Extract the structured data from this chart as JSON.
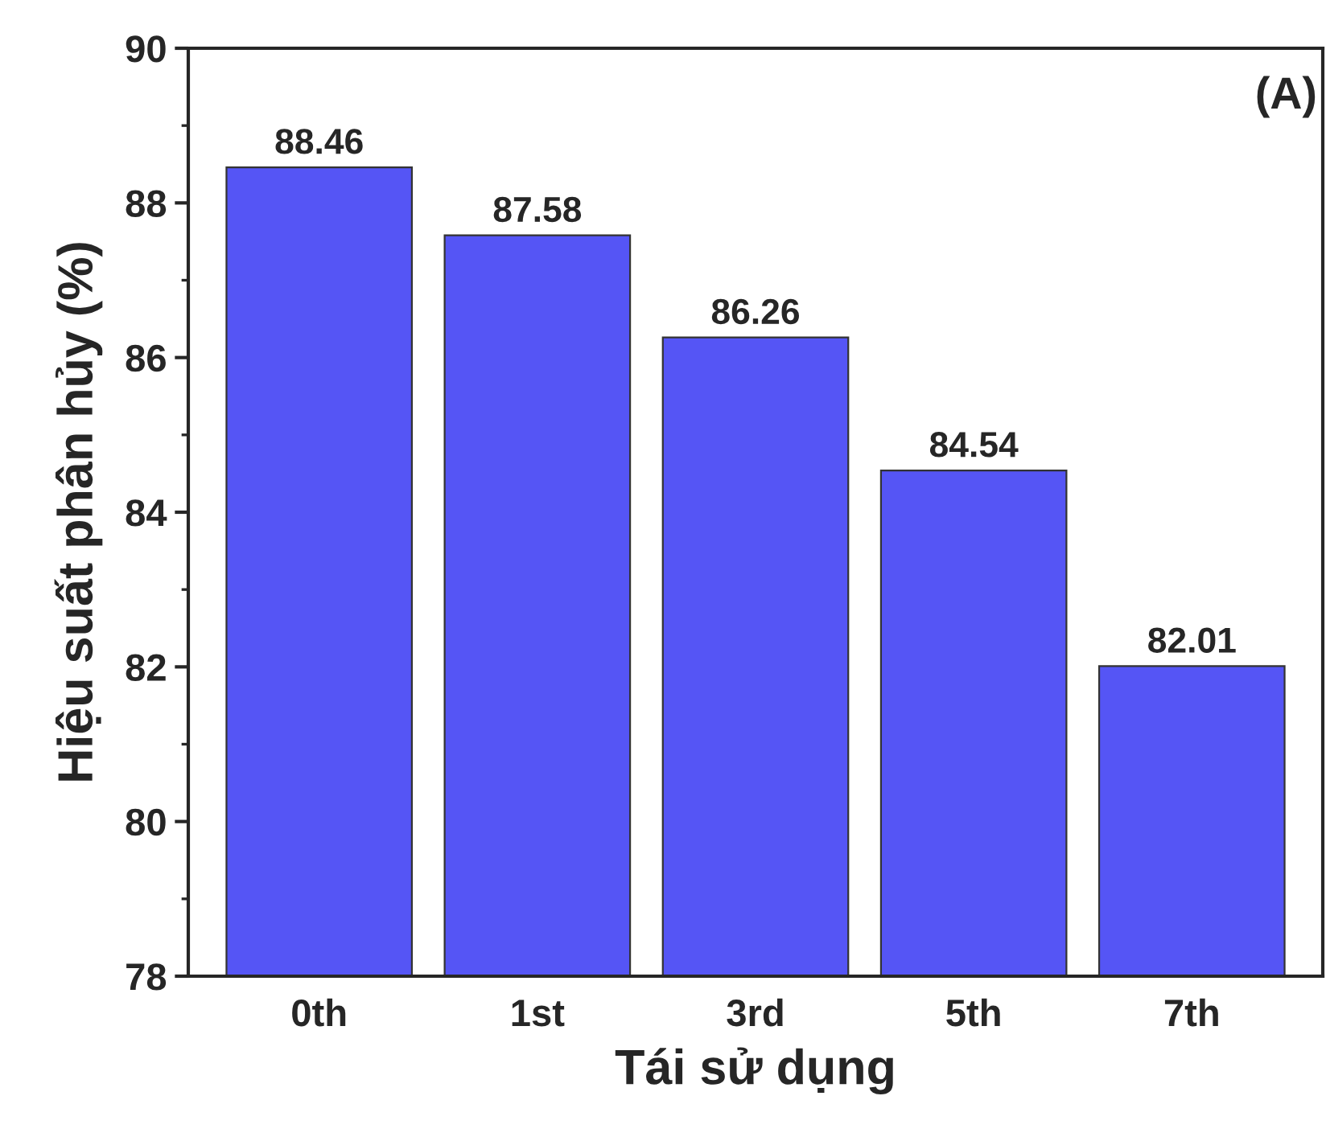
{
  "chart_data": {
    "type": "bar",
    "xlabel": "Tái sử dụng",
    "ylabel": "Hiệu suất phân hủy (%)",
    "categories": [
      "0th",
      "1st",
      "3rd",
      "5th",
      "7th"
    ],
    "values": [
      88.46,
      87.58,
      86.26,
      84.54,
      82.01
    ],
    "color": "#5555f5",
    "ylim": [
      78,
      90
    ],
    "yticks": [
      78,
      80,
      82,
      84,
      86,
      88,
      90
    ],
    "data_labels": true,
    "grid": false,
    "annotations": [
      "(A)"
    ]
  }
}
